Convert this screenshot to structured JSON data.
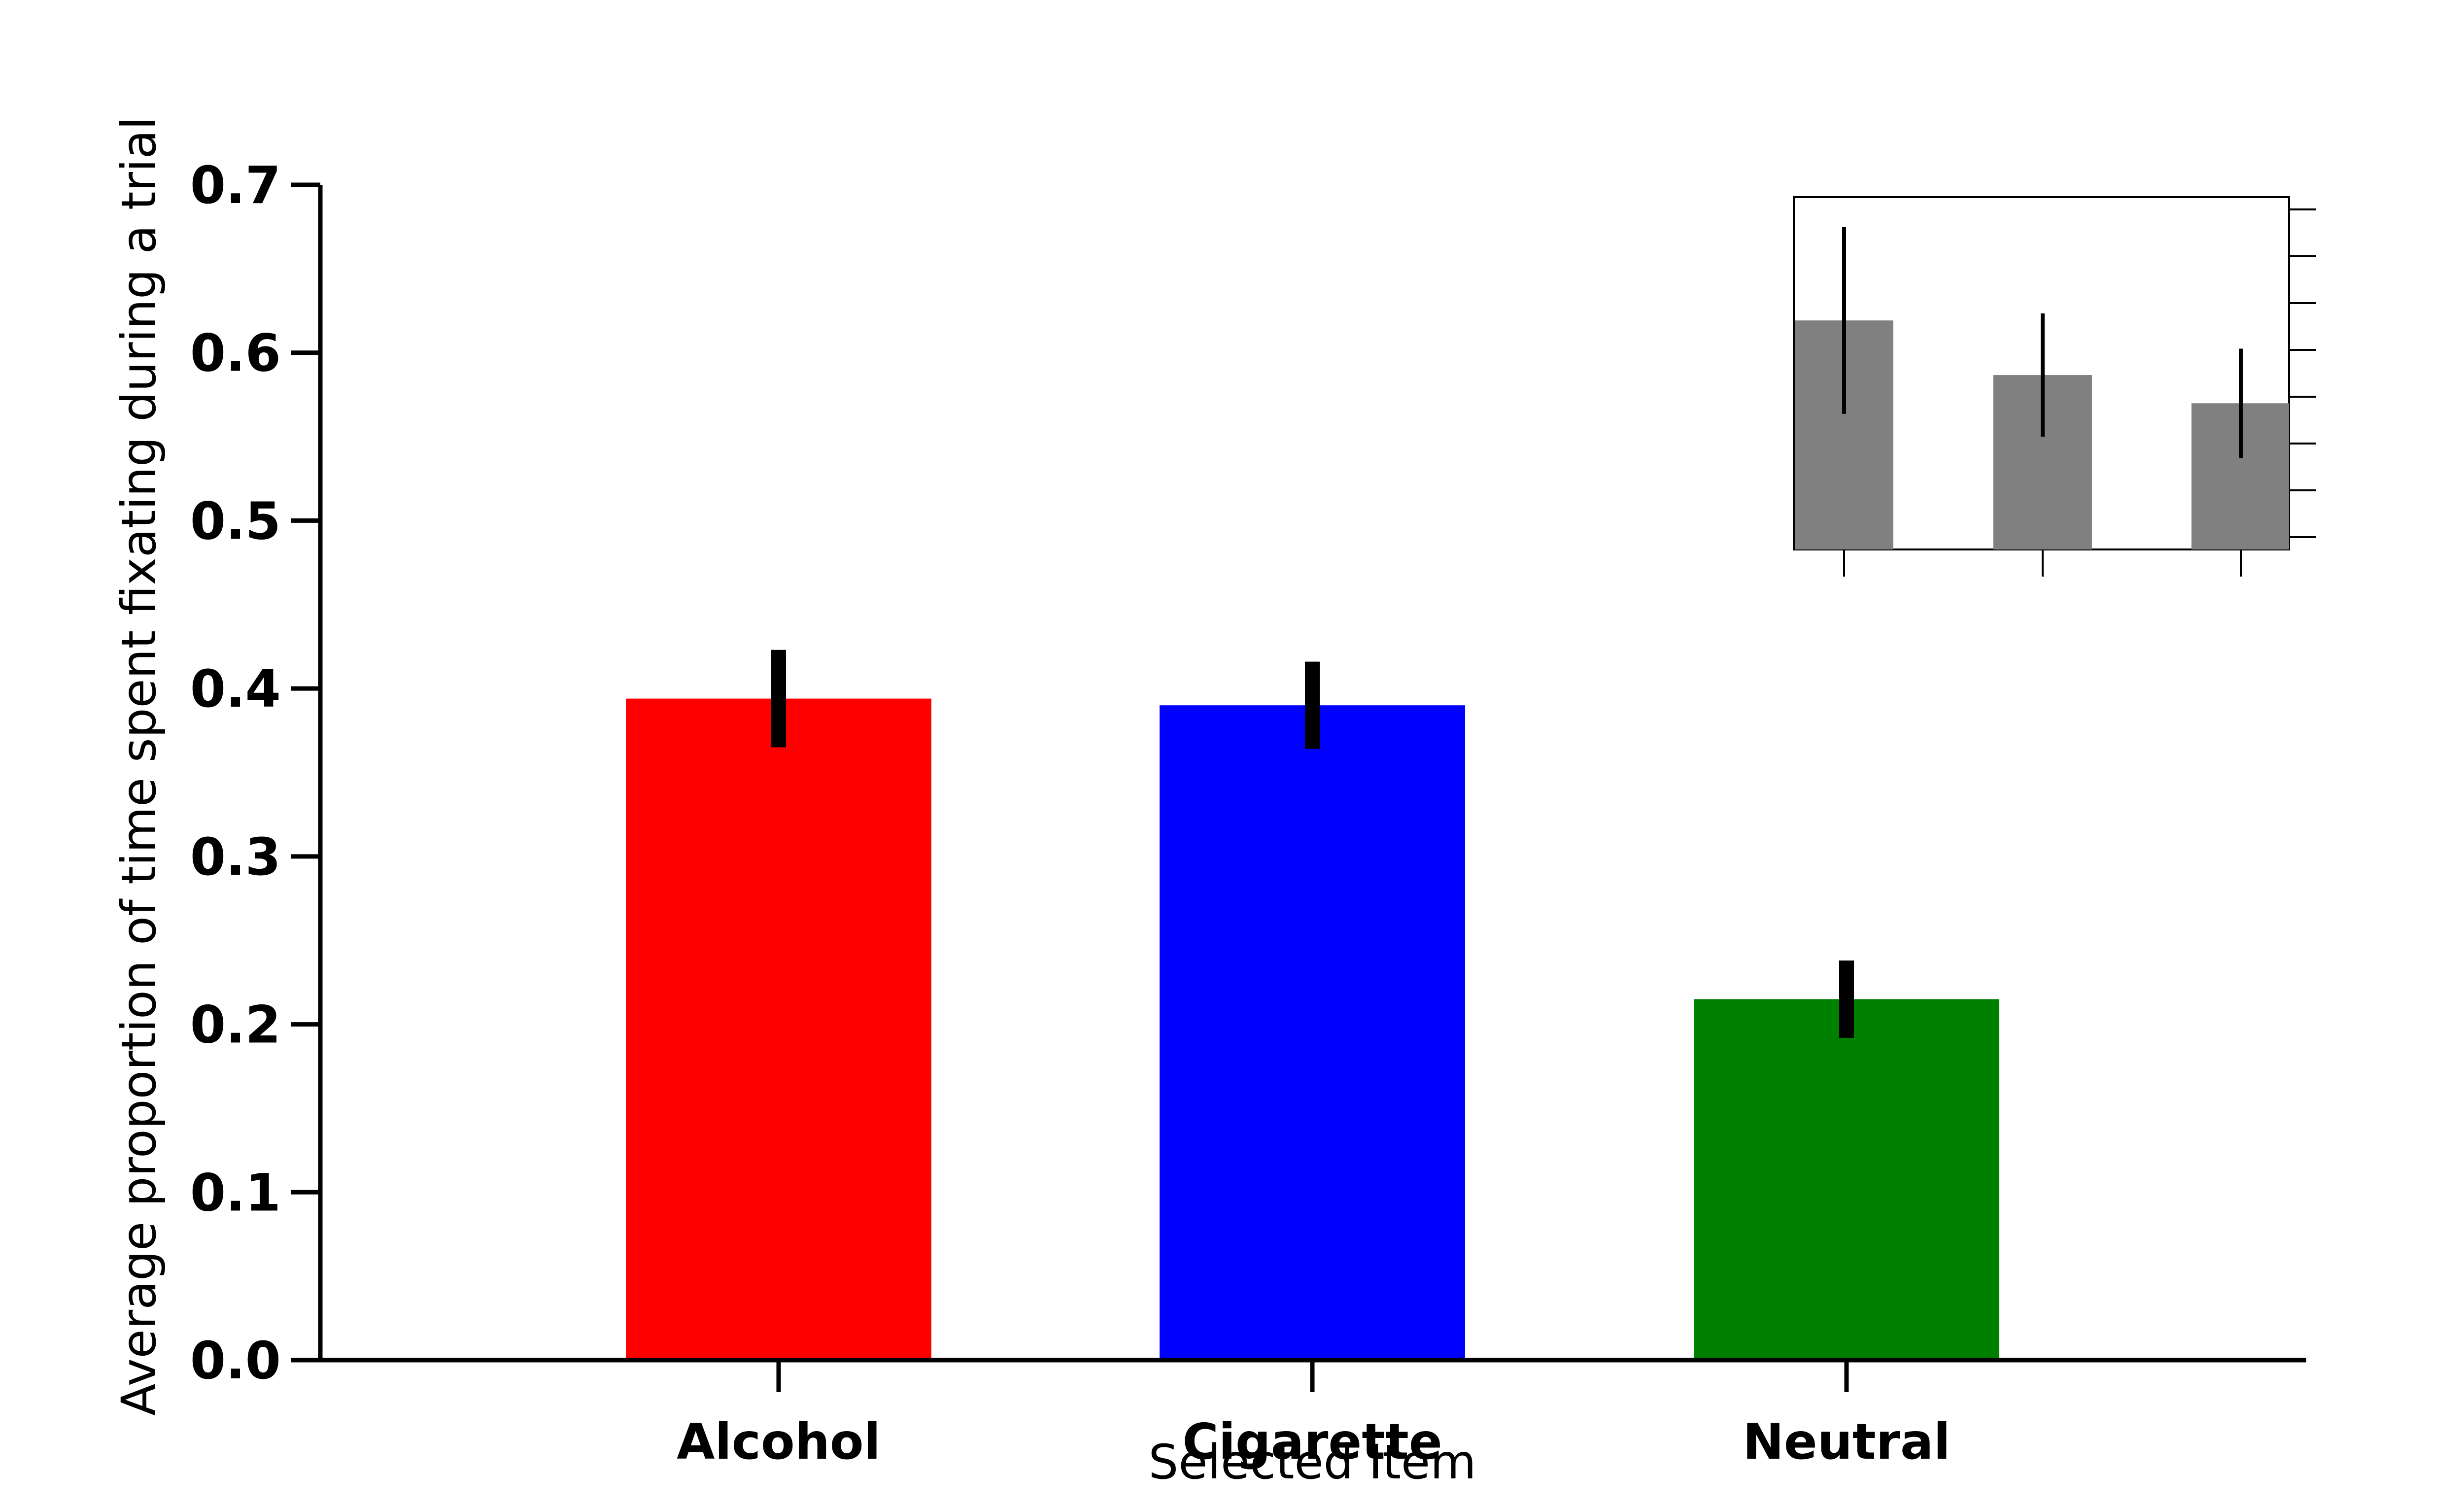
{
  "chart_data": [
    {
      "type": "bar",
      "categories": [
        "Alcohol",
        "Cigarette",
        "Neutral"
      ],
      "values": [
        0.394,
        0.39,
        0.215
      ],
      "errors": [
        0.029,
        0.026,
        0.023
      ],
      "colors": [
        "#ff0000",
        "#0000ff",
        "#008000"
      ],
      "title": "",
      "xlabel": "Selected Item",
      "ylabel": "Average proportion of time spent fixating during a trial",
      "ylim": [
        0,
        0.7
      ],
      "yticks": [
        "0.0",
        "0.1",
        "0.2",
        "0.3",
        "0.4",
        "0.5",
        "0.6",
        "0.7"
      ],
      "grid": false
    },
    {
      "type": "bar",
      "note_placement": "inset-top-right",
      "categories": [
        "",
        "",
        ""
      ],
      "values": [
        0.65,
        0.495,
        0.415
      ],
      "errors": [
        0.265,
        0.175,
        0.155
      ],
      "colors": [
        "#808080",
        "#808080",
        "#808080"
      ],
      "ylim": [
        0,
        1.0
      ],
      "grid": false
    }
  ]
}
